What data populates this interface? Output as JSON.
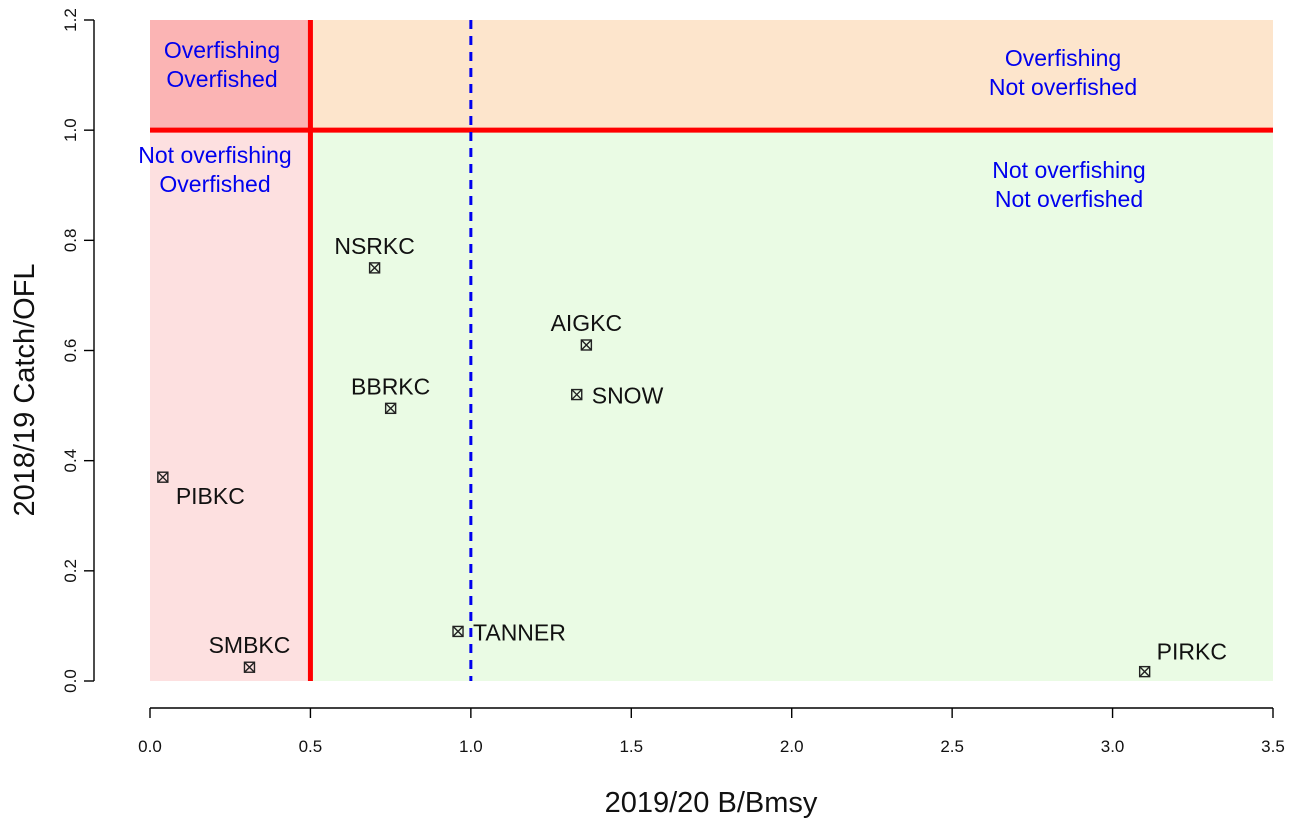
{
  "chart_data": {
    "type": "scatter",
    "xlabel": "2019/20  B/Bmsy",
    "ylabel": "2018/19  Catch/OFL",
    "xlim": [
      0,
      3.5
    ],
    "ylim": [
      0,
      1.2
    ],
    "x_ticks": [
      "0.0",
      "0.5",
      "1.0",
      "1.5",
      "2.0",
      "2.5",
      "3.0",
      "3.5"
    ],
    "y_ticks": [
      "0.0",
      "0.2",
      "0.4",
      "0.6",
      "0.8",
      "1.0",
      "1.2"
    ],
    "grid": false,
    "regions": [
      {
        "lines": [
          "Overfishing",
          "Overfished"
        ],
        "x": [
          0,
          0.5
        ],
        "y": [
          1.0,
          1.2
        ],
        "color": "#fbb4b4"
      },
      {
        "lines": [
          "Overfishing",
          "Not overfished"
        ],
        "x": [
          0.5,
          3.5
        ],
        "y": [
          1.0,
          1.2
        ],
        "color": "#fde5cc"
      },
      {
        "lines": [
          "Not overfishing",
          "Overfished"
        ],
        "x": [
          0,
          0.5
        ],
        "y": [
          0,
          1.0
        ],
        "color": "#fde0e0"
      },
      {
        "lines": [
          "Not overfishing",
          "Not overfished"
        ],
        "x": [
          0.5,
          3.5
        ],
        "y": [
          0,
          1.0
        ],
        "color": "#eafbe4"
      }
    ],
    "reference_lines": [
      {
        "orientation": "vertical",
        "value": 0.5,
        "color": "#ff0000",
        "style": "solid"
      },
      {
        "orientation": "horizontal",
        "value": 1.0,
        "color": "#ff0000",
        "style": "solid"
      },
      {
        "orientation": "vertical",
        "value": 1.0,
        "color": "#0000ee",
        "style": "dashed"
      }
    ],
    "points": [
      {
        "label": "NSRKC",
        "x": 0.7,
        "y": 0.75,
        "label_pos": "above"
      },
      {
        "label": "AIGKC",
        "x": 1.36,
        "y": 0.61,
        "label_pos": "above"
      },
      {
        "label": "BBRKC",
        "x": 0.75,
        "y": 0.495,
        "label_pos": "above"
      },
      {
        "label": "SNOW",
        "x": 1.33,
        "y": 0.52,
        "label_pos": "right"
      },
      {
        "label": "PIBKC",
        "x": 0.04,
        "y": 0.37,
        "label_pos": "below-right"
      },
      {
        "label": "SMBKC",
        "x": 0.31,
        "y": 0.025,
        "label_pos": "above"
      },
      {
        "label": "TANNER",
        "x": 0.96,
        "y": 0.09,
        "label_pos": "right"
      },
      {
        "label": "PIRKC",
        "x": 3.1,
        "y": 0.017,
        "label_pos": "above-right"
      }
    ],
    "colors": {
      "region_text": "#0000ee",
      "point": "#222222",
      "axis": "#000000"
    }
  }
}
